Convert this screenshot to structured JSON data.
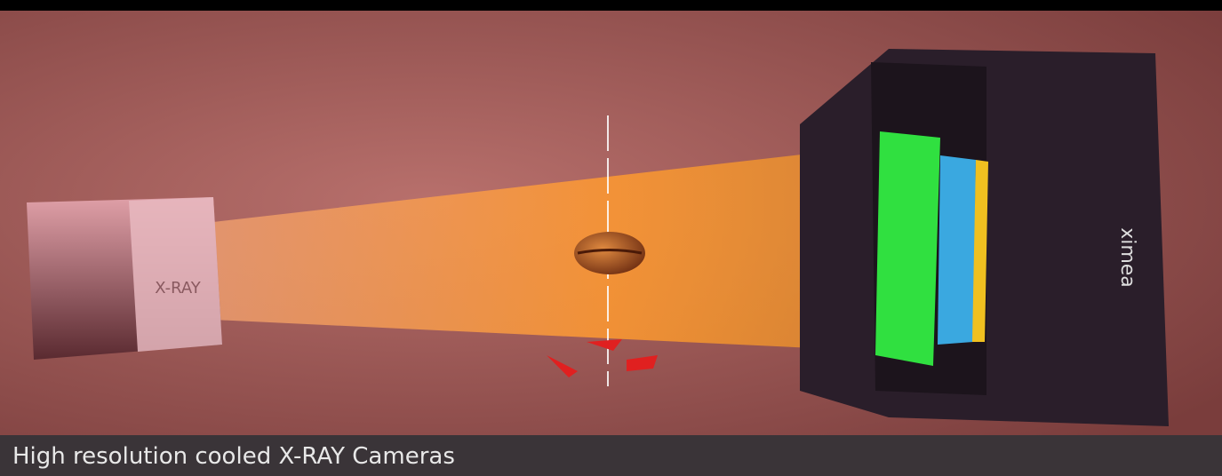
{
  "source_label": "X-RAY",
  "brand": "ximea",
  "caption": "High resolution cooled X-RAY Cameras"
}
